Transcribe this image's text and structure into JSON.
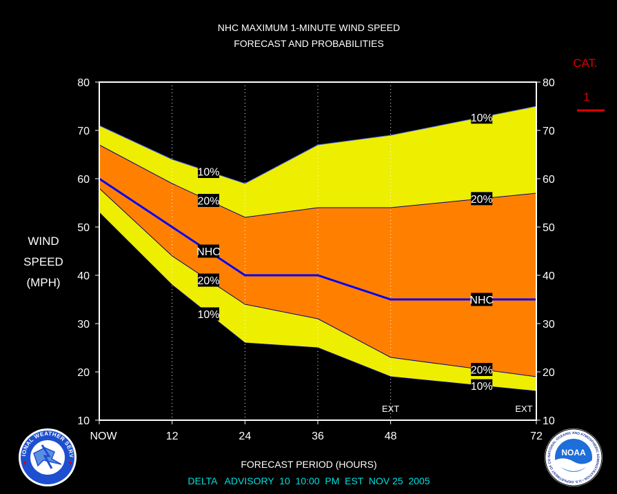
{
  "title_line1": "NHC MAXIMUM 1-MINUTE WIND SPEED",
  "title_line2": "FORECAST AND PROBABILITIES",
  "ylabel_lines": [
    "WIND",
    "SPEED",
    "(MPH)"
  ],
  "xlabel": "FORECAST PERIOD (HOURS)",
  "advisory": "DELTA   ADVISORY  10  10:00  PM  EST  NOV 25  2005",
  "category": {
    "label": "CAT.",
    "value": "1",
    "color": "#e00000",
    "level_mph": 74
  },
  "logos": {
    "left": {
      "name": "nws-logo",
      "text": "NATIONAL WEATHER SERVICE"
    },
    "right": {
      "name": "noaa-logo",
      "text": "NOAA",
      "ring_text": "NATIONAL OCEANIC AND ATMOSPHERIC ADMINISTRATION • U.S. DEPARTMENT OF COMMERCE"
    }
  },
  "colors": {
    "band_10_90": "#eeee00",
    "band_20_80": "#ff8000",
    "nhc_line": "#0000ff",
    "advisory_text": "#00e0e0",
    "grid": "#ffffff"
  },
  "chart_data": {
    "type": "area",
    "x": [
      0,
      12,
      24,
      36,
      48,
      72
    ],
    "xticks": [
      {
        "x": 0,
        "label": "NOW"
      },
      {
        "x": 12,
        "label": "12"
      },
      {
        "x": 24,
        "label": "24"
      },
      {
        "x": 36,
        "label": "36"
      },
      {
        "x": 48,
        "label": "48"
      },
      {
        "x": 72,
        "label": "72"
      }
    ],
    "xlim": [
      0,
      72
    ],
    "ylim": [
      10,
      80
    ],
    "yticks": [
      10,
      20,
      30,
      40,
      50,
      60,
      70,
      80
    ],
    "vertical_gridlines": [
      12,
      24,
      36,
      48
    ],
    "ext_markers": [
      {
        "x": 48,
        "label": "EXT"
      },
      {
        "x": 72,
        "label": "EXT"
      }
    ],
    "series": [
      {
        "name": "10%",
        "role": "upper_10",
        "values": [
          71,
          64,
          59,
          67,
          69,
          75
        ]
      },
      {
        "name": "20%",
        "role": "upper_20",
        "values": [
          67,
          59,
          52,
          54,
          54,
          57
        ]
      },
      {
        "name": "NHC",
        "role": "nhc",
        "values": [
          60,
          50,
          40,
          40,
          35,
          35
        ]
      },
      {
        "name": "20%",
        "role": "lower_20",
        "values": [
          58,
          44,
          34,
          31,
          23,
          19
        ]
      },
      {
        "name": "10%",
        "role": "lower_10",
        "values": [
          53,
          38,
          26,
          25,
          19,
          16
        ]
      }
    ],
    "series_labels": [
      {
        "series": 0,
        "x": 18,
        "text": "10%"
      },
      {
        "series": 0,
        "x": 63,
        "text": "10%"
      },
      {
        "series": 1,
        "x": 18,
        "text": "20%"
      },
      {
        "series": 1,
        "x": 63,
        "text": "20%"
      },
      {
        "series": 2,
        "x": 18,
        "text": "NHC"
      },
      {
        "series": 2,
        "x": 63,
        "text": "NHC"
      },
      {
        "series": 3,
        "x": 18,
        "text": "20%"
      },
      {
        "series": 3,
        "x": 63,
        "text": "20%"
      },
      {
        "series": 4,
        "x": 18,
        "text": "10%"
      },
      {
        "series": 4,
        "x": 63,
        "text": "10%"
      }
    ]
  }
}
